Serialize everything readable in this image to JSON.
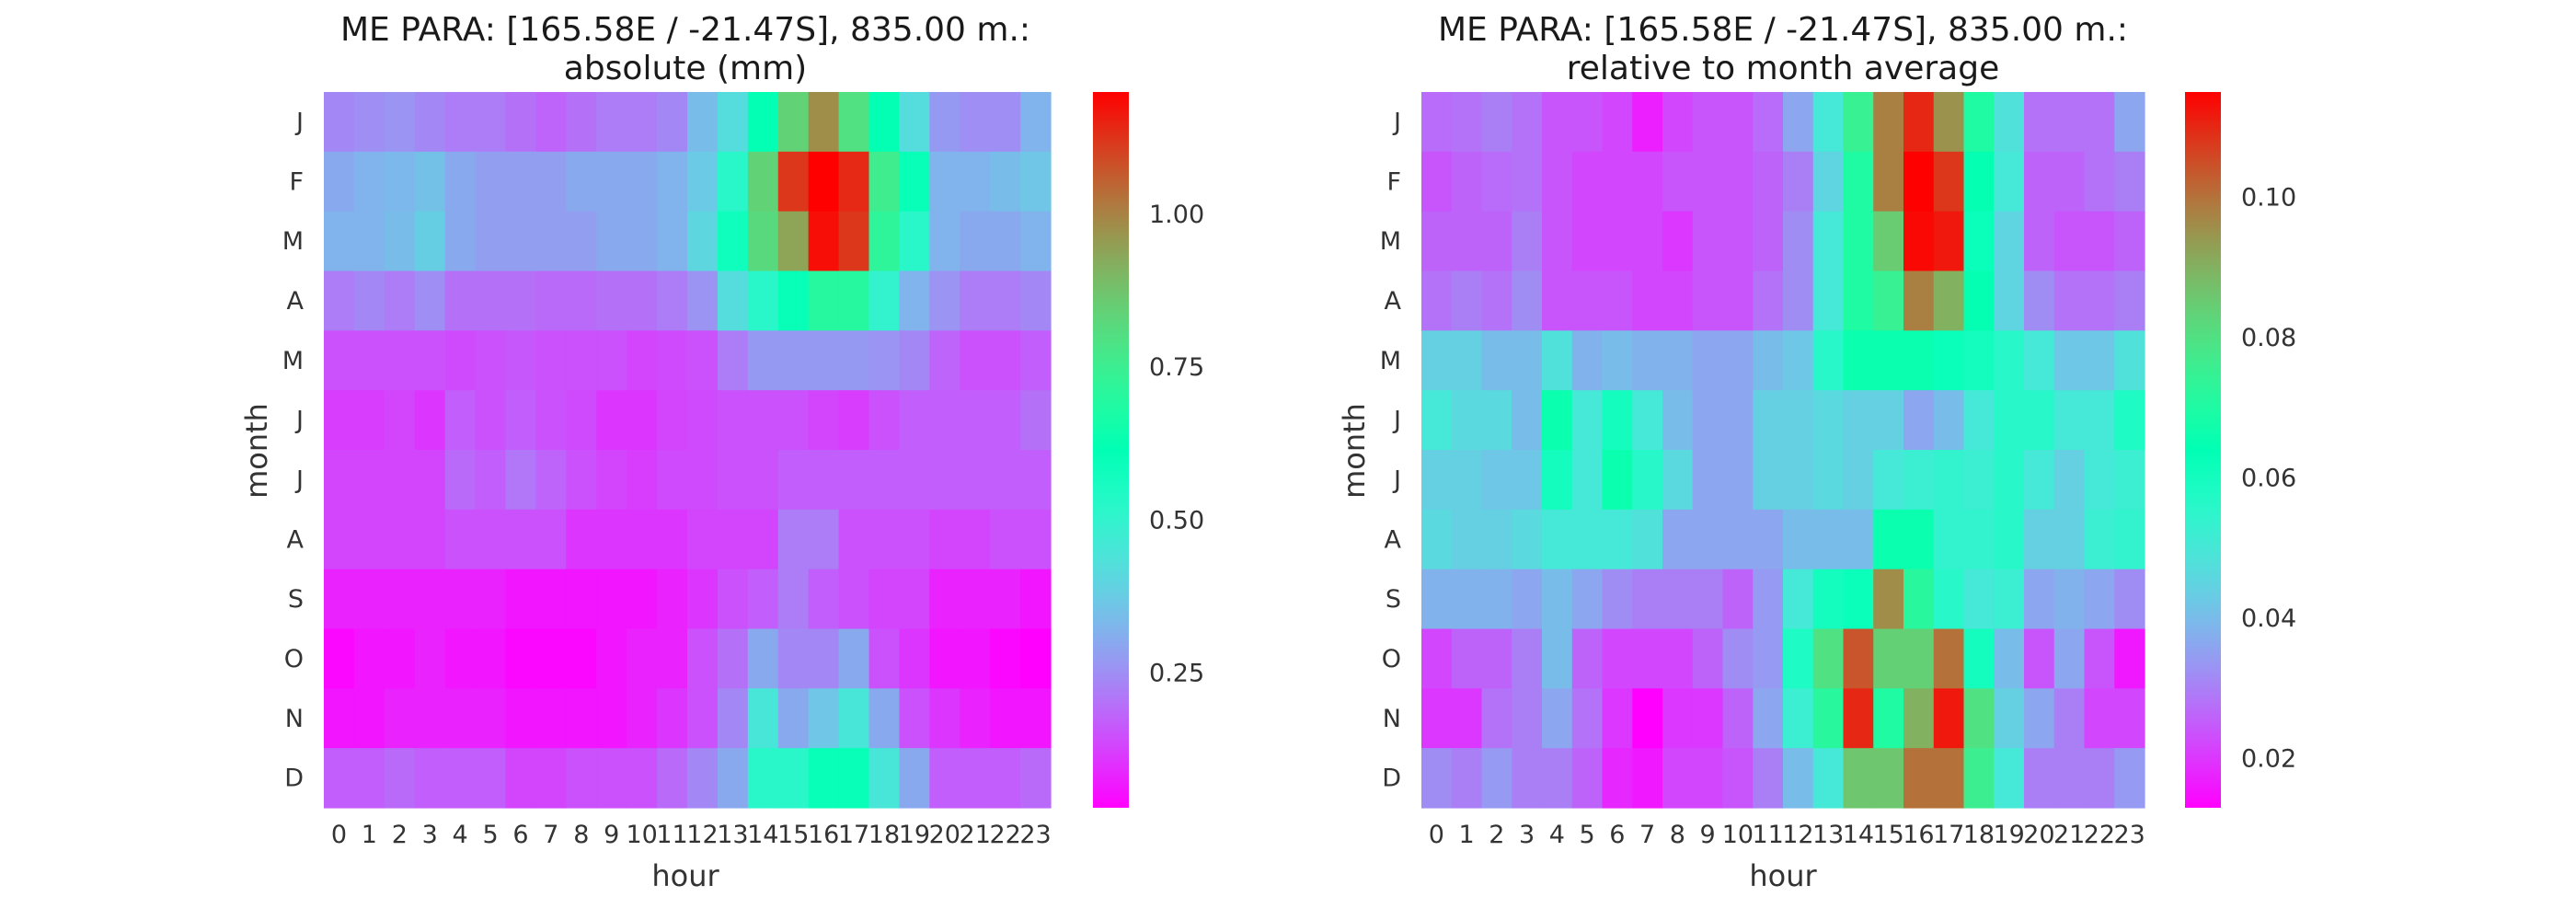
{
  "chart_data": [
    {
      "type": "heatmap",
      "title": "ME PARA: [165.58E / -21.47S], 835.00 m.:",
      "subtitle": "absolute (mm)",
      "xlabel": "hour",
      "ylabel": "month",
      "x": [
        "0",
        "1",
        "2",
        "3",
        "4",
        "5",
        "6",
        "7",
        "8",
        "9",
        "10",
        "11",
        "12",
        "13",
        "14",
        "15",
        "16",
        "17",
        "18",
        "19",
        "20",
        "21",
        "22",
        "23"
      ],
      "y": [
        "J",
        "F",
        "M",
        "A",
        "M",
        "J",
        "J",
        "A",
        "S",
        "O",
        "N",
        "D"
      ],
      "colormap": "rainbow",
      "vmin": 0.03,
      "vmax": 1.2,
      "colorbar_ticks": [
        0.25,
        0.5,
        0.75,
        1.0
      ],
      "colorbar_labels": [
        "0.25",
        "0.50",
        "0.75",
        "1.00"
      ],
      "values": [
        [
          0.24,
          0.25,
          0.26,
          0.24,
          0.22,
          0.22,
          0.2,
          0.18,
          0.2,
          0.22,
          0.22,
          0.24,
          0.34,
          0.42,
          0.62,
          0.84,
          0.98,
          0.8,
          0.62,
          0.42,
          0.27,
          0.25,
          0.25,
          0.32
        ],
        [
          0.3,
          0.32,
          0.33,
          0.35,
          0.3,
          0.28,
          0.28,
          0.28,
          0.3,
          0.3,
          0.3,
          0.32,
          0.37,
          0.52,
          0.84,
          1.12,
          1.2,
          1.14,
          0.76,
          0.6,
          0.32,
          0.32,
          0.34,
          0.36
        ],
        [
          0.32,
          0.32,
          0.34,
          0.38,
          0.3,
          0.28,
          0.28,
          0.28,
          0.28,
          0.3,
          0.3,
          0.32,
          0.4,
          0.58,
          0.82,
          0.94,
          1.18,
          1.12,
          0.72,
          0.52,
          0.32,
          0.3,
          0.3,
          0.32
        ],
        [
          0.22,
          0.24,
          0.22,
          0.25,
          0.2,
          0.2,
          0.2,
          0.19,
          0.19,
          0.2,
          0.2,
          0.22,
          0.26,
          0.42,
          0.52,
          0.6,
          0.7,
          0.7,
          0.5,
          0.32,
          0.26,
          0.22,
          0.22,
          0.24
        ],
        [
          0.15,
          0.15,
          0.15,
          0.15,
          0.14,
          0.15,
          0.16,
          0.15,
          0.15,
          0.15,
          0.13,
          0.14,
          0.15,
          0.22,
          0.27,
          0.27,
          0.27,
          0.27,
          0.26,
          0.24,
          0.18,
          0.15,
          0.15,
          0.17
        ],
        [
          0.12,
          0.12,
          0.13,
          0.11,
          0.17,
          0.15,
          0.17,
          0.15,
          0.14,
          0.11,
          0.11,
          0.13,
          0.14,
          0.15,
          0.15,
          0.15,
          0.13,
          0.12,
          0.15,
          0.17,
          0.17,
          0.17,
          0.17,
          0.2
        ],
        [
          0.13,
          0.13,
          0.13,
          0.13,
          0.19,
          0.17,
          0.21,
          0.18,
          0.15,
          0.13,
          0.12,
          0.14,
          0.14,
          0.15,
          0.15,
          0.17,
          0.17,
          0.17,
          0.17,
          0.17,
          0.17,
          0.17,
          0.17,
          0.17
        ],
        [
          0.13,
          0.13,
          0.13,
          0.13,
          0.15,
          0.15,
          0.15,
          0.15,
          0.11,
          0.11,
          0.11,
          0.11,
          0.13,
          0.13,
          0.13,
          0.22,
          0.22,
          0.15,
          0.15,
          0.15,
          0.13,
          0.13,
          0.15,
          0.15
        ],
        [
          0.08,
          0.08,
          0.08,
          0.08,
          0.08,
          0.08,
          0.06,
          0.06,
          0.06,
          0.06,
          0.06,
          0.08,
          0.11,
          0.15,
          0.17,
          0.22,
          0.17,
          0.15,
          0.13,
          0.13,
          0.08,
          0.08,
          0.08,
          0.06
        ],
        [
          0.04,
          0.06,
          0.06,
          0.08,
          0.06,
          0.06,
          0.04,
          0.04,
          0.04,
          0.06,
          0.08,
          0.08,
          0.15,
          0.2,
          0.3,
          0.24,
          0.24,
          0.3,
          0.15,
          0.11,
          0.06,
          0.06,
          0.04,
          0.03
        ],
        [
          0.06,
          0.06,
          0.08,
          0.08,
          0.08,
          0.08,
          0.06,
          0.06,
          0.06,
          0.06,
          0.08,
          0.11,
          0.15,
          0.24,
          0.45,
          0.3,
          0.36,
          0.45,
          0.3,
          0.15,
          0.11,
          0.08,
          0.06,
          0.06
        ],
        [
          0.17,
          0.17,
          0.19,
          0.17,
          0.17,
          0.17,
          0.13,
          0.13,
          0.15,
          0.15,
          0.15,
          0.19,
          0.24,
          0.3,
          0.52,
          0.52,
          0.6,
          0.6,
          0.45,
          0.3,
          0.17,
          0.17,
          0.17,
          0.19
        ]
      ]
    },
    {
      "type": "heatmap",
      "title": "ME PARA: [165.58E / -21.47S], 835.00 m.:",
      "subtitle": "relative to month average",
      "xlabel": "hour",
      "ylabel": "month",
      "x": [
        "0",
        "1",
        "2",
        "3",
        "4",
        "5",
        "6",
        "7",
        "8",
        "9",
        "10",
        "11",
        "12",
        "13",
        "14",
        "15",
        "16",
        "17",
        "18",
        "19",
        "20",
        "21",
        "22",
        "23"
      ],
      "y": [
        "J",
        "F",
        "M",
        "A",
        "M",
        "J",
        "J",
        "A",
        "S",
        "O",
        "N",
        "D"
      ],
      "colormap": "rainbow",
      "vmin": 0.013,
      "vmax": 0.115,
      "colorbar_ticks": [
        0.02,
        0.04,
        0.06,
        0.08,
        0.1
      ],
      "colorbar_labels": [
        "0.02",
        "0.04",
        "0.06",
        "0.08",
        "0.10"
      ],
      "values": [
        [
          0.027,
          0.028,
          0.03,
          0.028,
          0.024,
          0.024,
          0.022,
          0.017,
          0.022,
          0.024,
          0.024,
          0.027,
          0.036,
          0.05,
          0.075,
          0.098,
          0.11,
          0.095,
          0.07,
          0.048,
          0.028,
          0.028,
          0.028,
          0.036
        ],
        [
          0.024,
          0.026,
          0.027,
          0.028,
          0.024,
          0.022,
          0.022,
          0.022,
          0.024,
          0.024,
          0.024,
          0.026,
          0.03,
          0.045,
          0.07,
          0.098,
          0.115,
          0.108,
          0.065,
          0.05,
          0.026,
          0.026,
          0.028,
          0.03
        ],
        [
          0.026,
          0.026,
          0.026,
          0.03,
          0.024,
          0.022,
          0.022,
          0.022,
          0.02,
          0.024,
          0.024,
          0.026,
          0.032,
          0.05,
          0.07,
          0.085,
          0.114,
          0.112,
          0.062,
          0.045,
          0.026,
          0.024,
          0.024,
          0.026
        ],
        [
          0.028,
          0.03,
          0.028,
          0.032,
          0.024,
          0.024,
          0.024,
          0.022,
          0.022,
          0.024,
          0.024,
          0.028,
          0.032,
          0.05,
          0.07,
          0.075,
          0.098,
          0.09,
          0.065,
          0.045,
          0.032,
          0.028,
          0.028,
          0.03
        ],
        [
          0.044,
          0.044,
          0.04,
          0.04,
          0.048,
          0.038,
          0.04,
          0.038,
          0.038,
          0.036,
          0.036,
          0.04,
          0.042,
          0.056,
          0.066,
          0.066,
          0.066,
          0.062,
          0.06,
          0.056,
          0.05,
          0.042,
          0.042,
          0.048
        ],
        [
          0.05,
          0.046,
          0.046,
          0.04,
          0.066,
          0.05,
          0.06,
          0.05,
          0.04,
          0.036,
          0.036,
          0.044,
          0.044,
          0.046,
          0.044,
          0.044,
          0.036,
          0.04,
          0.05,
          0.056,
          0.056,
          0.05,
          0.05,
          0.058
        ],
        [
          0.044,
          0.044,
          0.042,
          0.042,
          0.06,
          0.05,
          0.066,
          0.056,
          0.046,
          0.036,
          0.036,
          0.044,
          0.044,
          0.046,
          0.044,
          0.05,
          0.052,
          0.054,
          0.052,
          0.056,
          0.05,
          0.044,
          0.05,
          0.052
        ],
        [
          0.046,
          0.044,
          0.044,
          0.046,
          0.05,
          0.05,
          0.05,
          0.048,
          0.036,
          0.036,
          0.036,
          0.036,
          0.04,
          0.04,
          0.04,
          0.066,
          0.066,
          0.054,
          0.054,
          0.056,
          0.044,
          0.044,
          0.052,
          0.054
        ],
        [
          0.038,
          0.038,
          0.038,
          0.036,
          0.04,
          0.036,
          0.032,
          0.03,
          0.03,
          0.03,
          0.026,
          0.034,
          0.05,
          0.06,
          0.062,
          0.096,
          0.072,
          0.056,
          0.05,
          0.052,
          0.036,
          0.038,
          0.036,
          0.032
        ],
        [
          0.022,
          0.026,
          0.026,
          0.03,
          0.04,
          0.026,
          0.022,
          0.022,
          0.022,
          0.026,
          0.032,
          0.034,
          0.058,
          0.08,
          0.104,
          0.084,
          0.084,
          0.1,
          0.06,
          0.04,
          0.024,
          0.036,
          0.024,
          0.016
        ],
        [
          0.02,
          0.02,
          0.028,
          0.03,
          0.036,
          0.028,
          0.02,
          0.013,
          0.02,
          0.02,
          0.026,
          0.036,
          0.052,
          0.072,
          0.11,
          0.07,
          0.09,
          0.112,
          0.08,
          0.044,
          0.036,
          0.03,
          0.022,
          0.022
        ],
        [
          0.032,
          0.03,
          0.034,
          0.03,
          0.03,
          0.026,
          0.018,
          0.016,
          0.022,
          0.022,
          0.024,
          0.03,
          0.04,
          0.05,
          0.086,
          0.086,
          0.1,
          0.1,
          0.076,
          0.05,
          0.03,
          0.03,
          0.03,
          0.034
        ]
      ]
    }
  ]
}
